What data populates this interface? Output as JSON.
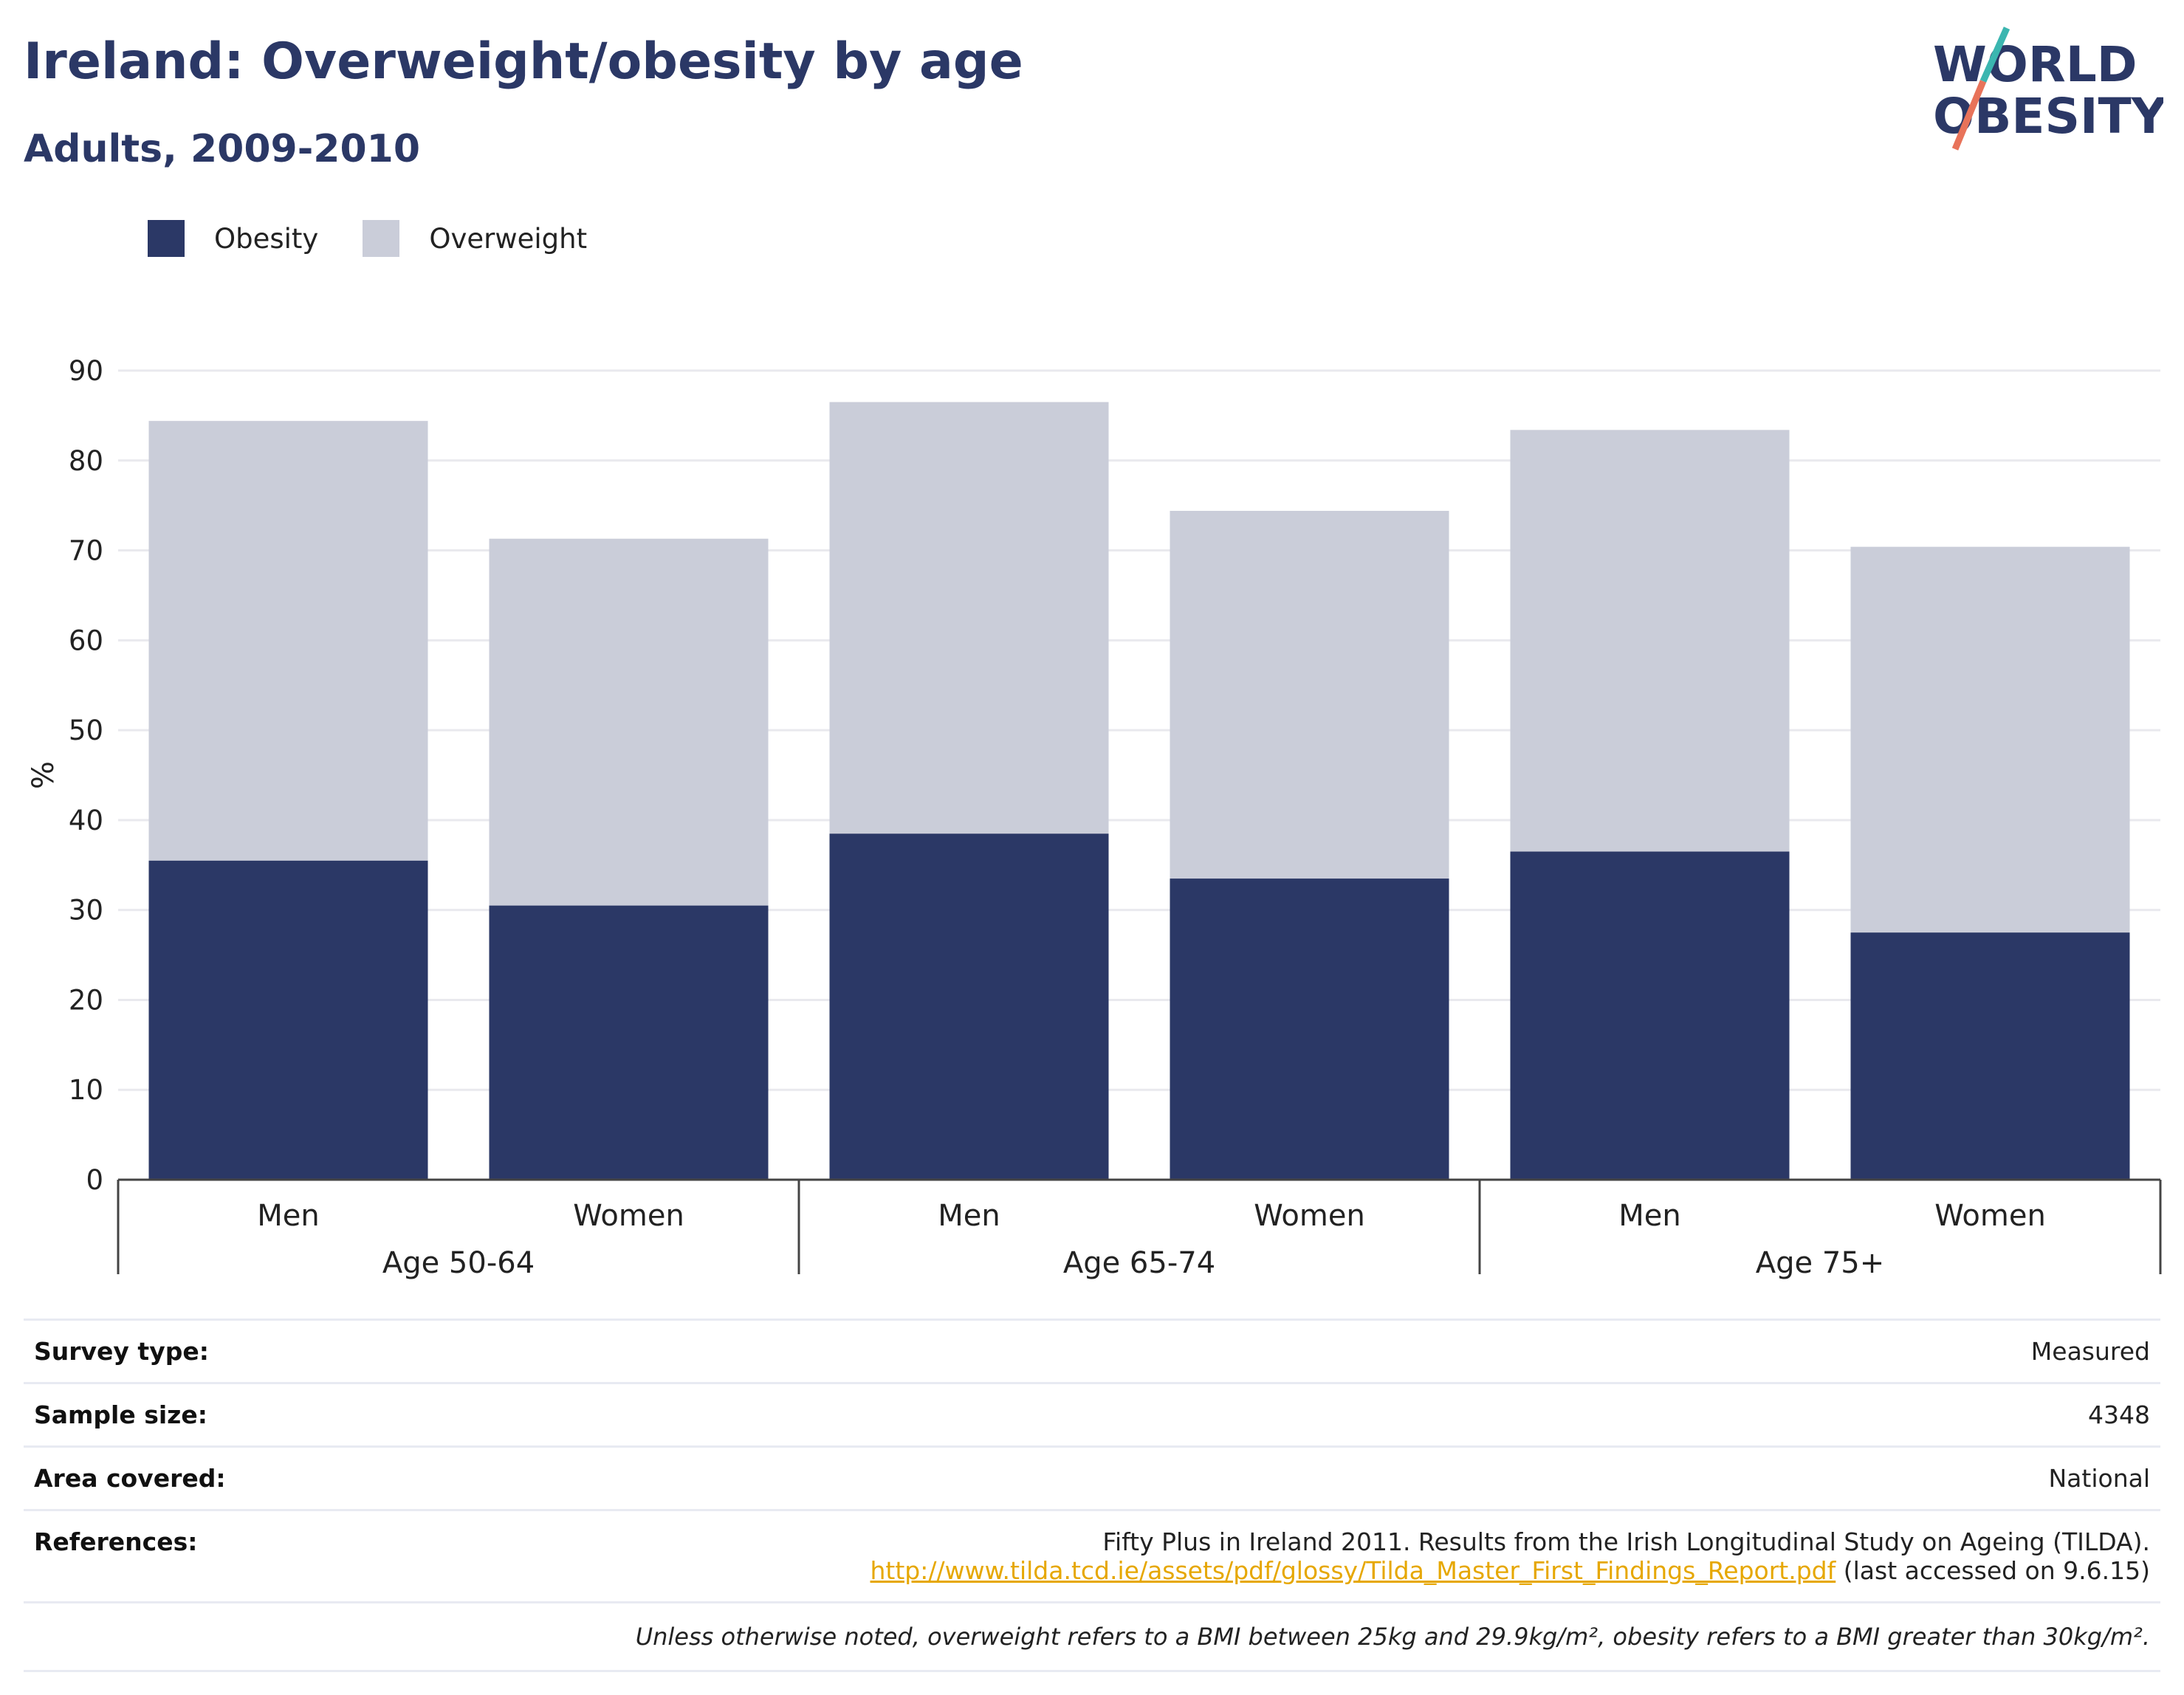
{
  "header": {
    "title": "Ireland: Overweight/obesity by age",
    "subtitle": "Adults, 2009-2010"
  },
  "logo": {
    "line1": "WORLD",
    "line2": "OBESITY",
    "icon": "world-obesity-logo",
    "accent_teal": "#3bb6b0",
    "accent_coral": "#e8735a"
  },
  "colors": {
    "obesity": "#2b3866",
    "overweight": "#cacdd9",
    "text": "#2b3866"
  },
  "chart_data": {
    "type": "bar",
    "stacked": true,
    "ylabel": "%",
    "ylim": [
      0,
      90
    ],
    "yticks": [
      0,
      10,
      20,
      30,
      40,
      50,
      60,
      70,
      80,
      90
    ],
    "groups": [
      {
        "label": "Age 50-64",
        "categories": [
          "Men",
          "Women"
        ]
      },
      {
        "label": "Age 65-74",
        "categories": [
          "Men",
          "Women"
        ]
      },
      {
        "label": "Age 75+",
        "categories": [
          "Men",
          "Women"
        ]
      }
    ],
    "categories": [
      "Men",
      "Women",
      "Men",
      "Women",
      "Men",
      "Women"
    ],
    "series": [
      {
        "name": "Obesity",
        "values": [
          35.5,
          30.5,
          38.5,
          33.5,
          36.5,
          27.5
        ]
      },
      {
        "name": "Overweight",
        "values": [
          48.9,
          40.8,
          48.0,
          40.9,
          46.9,
          42.9
        ]
      }
    ],
    "totals": [
      84.4,
      71.3,
      86.5,
      74.4,
      83.4,
      70.4
    ],
    "grid": true,
    "legend_position": "top-left"
  },
  "info": {
    "survey_type": {
      "label": "Survey type:",
      "value": "Measured"
    },
    "sample_size": {
      "label": "Sample size:",
      "value": "4348"
    },
    "area_covered": {
      "label": "Area covered:",
      "value": "National"
    },
    "references": {
      "label": "References:",
      "text": "Fifty Plus in Ireland 2011. Results from the Irish Longitudinal Study on Ageing (TILDA).",
      "link": "http://www.tilda.tcd.ie/assets/pdf/glossy/Tilda_Master_First_Findings_Report.pdf",
      "suffix": "(last accessed on 9.6.15)"
    },
    "note": "Unless otherwise noted, overweight refers to a BMI between 25kg and 29.9kg/m², obesity refers to a BMI greater than 30kg/m²."
  }
}
